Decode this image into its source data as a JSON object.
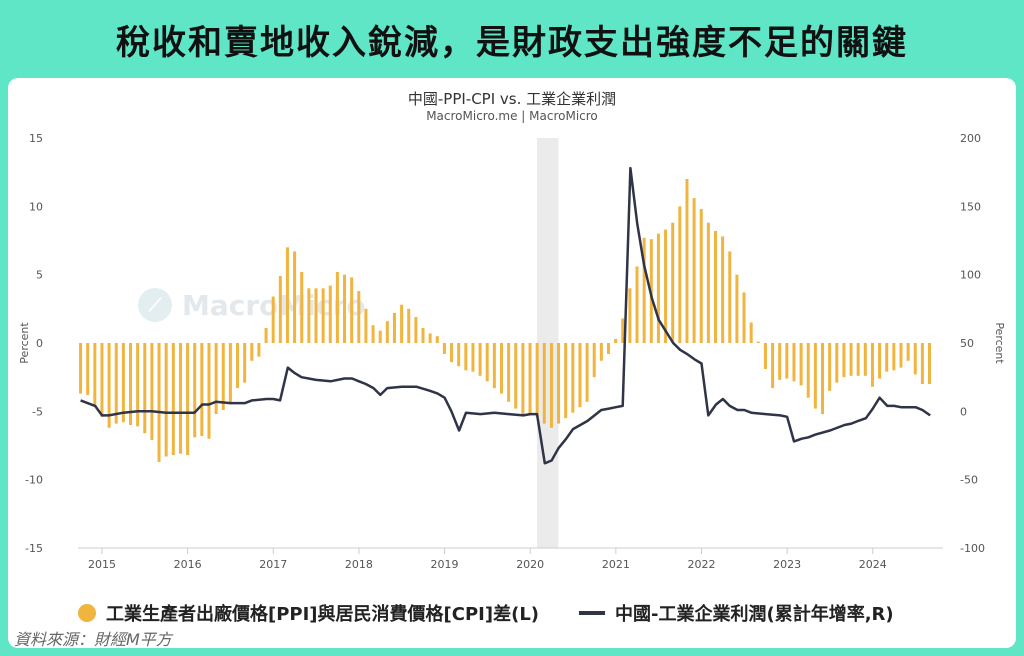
{
  "banner": {
    "title": "稅收和賣地收入銳減，是財政支出強度不足的關鍵"
  },
  "chart_data": {
    "type": "bar+line",
    "title": "中國-PPI-CPI vs. 工業企業利潤",
    "subtitle": "MacroMicro.me | MacroMicro",
    "left_axis": {
      "label": "Percent",
      "ylim": [
        -15,
        15
      ],
      "ticks": [
        15,
        10,
        5,
        0,
        -5,
        -10,
        -15
      ]
    },
    "right_axis": {
      "label": "Percent",
      "ylim": [
        -100,
        200
      ],
      "ticks": [
        200,
        150,
        100,
        50,
        0,
        -50,
        -100
      ]
    },
    "x_axis": {
      "ticks": [
        "2015",
        "2016",
        "2017",
        "2018",
        "2019",
        "2020",
        "2021",
        "2022",
        "2023",
        "2024"
      ],
      "range": [
        2014.72,
        2024.82
      ]
    },
    "highlight_period": [
      2020.08,
      2020.33
    ],
    "bar_series": {
      "name": "工業生產者出廠價格[PPI]與居民消費價格[CPI]差(L)",
      "color": "#f0b43f",
      "start": 2014.75,
      "step": 0.0833,
      "values": [
        -3.7,
        -3.8,
        -4.6,
        -5.4,
        -6.2,
        -5.9,
        -5.8,
        -6.0,
        -6.1,
        -6.6,
        -7.1,
        -8.7,
        -8.3,
        -8.2,
        -8.1,
        -8.2,
        -6.9,
        -6.8,
        -7.0,
        -5.2,
        -4.9,
        -4.5,
        -3.3,
        -2.9,
        -1.3,
        -1.0,
        1.1,
        3.4,
        4.9,
        7.0,
        6.7,
        5.2,
        4.0,
        4.0,
        4.0,
        4.2,
        5.2,
        5.0,
        4.8,
        3.8,
        2.5,
        1.3,
        0.9,
        1.6,
        2.2,
        2.8,
        2.5,
        1.9,
        1.1,
        0.7,
        0.5,
        -0.8,
        -1.4,
        -1.7,
        -2.0,
        -2.1,
        -2.4,
        -2.8,
        -3.3,
        -3.7,
        -4.3,
        -4.8,
        -5.3,
        -5.3,
        -5.4,
        -5.9,
        -6.2,
        -5.9,
        -5.5,
        -5.1,
        -4.7,
        -4.3,
        -2.5,
        -1.3,
        -0.8,
        0.3,
        1.8,
        4.0,
        5.6,
        7.7,
        7.6,
        8.0,
        8.3,
        8.8,
        10.0,
        12.0,
        10.6,
        9.8,
        8.8,
        8.2,
        7.8,
        6.7,
        5.0,
        3.7,
        1.5,
        0.1,
        -1.9,
        -3.3,
        -2.7,
        -2.6,
        -2.8,
        -3.1,
        -4.0,
        -4.8,
        -5.2,
        -3.5,
        -2.9,
        -2.5,
        -2.4,
        -2.4,
        -2.4,
        -3.2,
        -2.6,
        -2.1,
        -2.0,
        -1.8,
        -1.3,
        -2.3,
        -3.0,
        -3.0
      ]
    },
    "line_series": {
      "name": "中國-工業企業利潤(累計年增率,R)",
      "color": "#2f3447",
      "points": [
        [
          2014.75,
          8
        ],
        [
          2014.92,
          4
        ],
        [
          2015.0,
          -3
        ],
        [
          2015.08,
          -3
        ],
        [
          2015.25,
          -1
        ],
        [
          2015.42,
          0
        ],
        [
          2015.58,
          0
        ],
        [
          2015.75,
          -1
        ],
        [
          2015.92,
          -1
        ],
        [
          2016.08,
          -1
        ],
        [
          2016.17,
          5
        ],
        [
          2016.25,
          5
        ],
        [
          2016.33,
          7
        ],
        [
          2016.5,
          6
        ],
        [
          2016.67,
          6
        ],
        [
          2016.75,
          8
        ],
        [
          2016.92,
          9
        ],
        [
          2017.0,
          9
        ],
        [
          2017.08,
          8
        ],
        [
          2017.17,
          32
        ],
        [
          2017.25,
          28
        ],
        [
          2017.33,
          25
        ],
        [
          2017.5,
          23
        ],
        [
          2017.67,
          22
        ],
        [
          2017.83,
          24
        ],
        [
          2017.92,
          24
        ],
        [
          2018.0,
          22
        ],
        [
          2018.08,
          20
        ],
        [
          2018.17,
          17
        ],
        [
          2018.25,
          12
        ],
        [
          2018.33,
          17
        ],
        [
          2018.5,
          18
        ],
        [
          2018.67,
          18
        ],
        [
          2018.83,
          15
        ],
        [
          2018.92,
          13
        ],
        [
          2019.0,
          10
        ],
        [
          2019.08,
          0
        ],
        [
          2019.17,
          -14
        ],
        [
          2019.25,
          -1
        ],
        [
          2019.42,
          -2
        ],
        [
          2019.58,
          -1
        ],
        [
          2019.75,
          -2
        ],
        [
          2019.92,
          -3
        ],
        [
          2020.0,
          -2
        ],
        [
          2020.08,
          -2
        ],
        [
          2020.17,
          -38
        ],
        [
          2020.25,
          -36
        ],
        [
          2020.33,
          -27
        ],
        [
          2020.42,
          -20
        ],
        [
          2020.5,
          -13
        ],
        [
          2020.67,
          -7
        ],
        [
          2020.83,
          1
        ],
        [
          2020.92,
          2
        ],
        [
          2021.0,
          3
        ],
        [
          2021.08,
          4
        ],
        [
          2021.17,
          178
        ],
        [
          2021.25,
          137
        ],
        [
          2021.33,
          107
        ],
        [
          2021.42,
          83
        ],
        [
          2021.5,
          67
        ],
        [
          2021.67,
          50
        ],
        [
          2021.75,
          45
        ],
        [
          2021.83,
          42
        ],
        [
          2021.92,
          38
        ],
        [
          2022.0,
          35
        ],
        [
          2022.08,
          -3
        ],
        [
          2022.17,
          5
        ],
        [
          2022.25,
          9
        ],
        [
          2022.33,
          4
        ],
        [
          2022.42,
          1
        ],
        [
          2022.5,
          1
        ],
        [
          2022.58,
          -1
        ],
        [
          2022.75,
          -2
        ],
        [
          2022.92,
          -3
        ],
        [
          2023.0,
          -4
        ],
        [
          2023.08,
          -22
        ],
        [
          2023.17,
          -20
        ],
        [
          2023.25,
          -19
        ],
        [
          2023.33,
          -17
        ],
        [
          2023.5,
          -14
        ],
        [
          2023.67,
          -10
        ],
        [
          2023.75,
          -9
        ],
        [
          2023.83,
          -7
        ],
        [
          2023.92,
          -5
        ],
        [
          2024.0,
          2
        ],
        [
          2024.08,
          10
        ],
        [
          2024.17,
          4
        ],
        [
          2024.25,
          4
        ],
        [
          2024.33,
          3
        ],
        [
          2024.5,
          3
        ],
        [
          2024.58,
          1
        ],
        [
          2024.67,
          -3
        ]
      ]
    },
    "grid": false,
    "legend_position": "bottom"
  },
  "legend": {
    "bar_label": "工業生產者出廠價格[PPI]與居民消費價格[CPI]差(L)",
    "line_label": "中國-工業企業利潤(累計年增率,R)"
  },
  "watermark": "MacroMicro",
  "source": "資料來源：財經M平方"
}
